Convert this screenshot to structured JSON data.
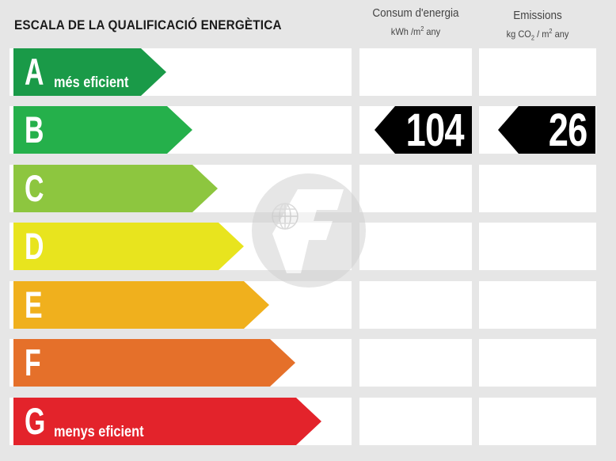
{
  "title": "ESCALA DE LA QUALIFICACIÓ ENERGÈTICA",
  "columns": {
    "consum": {
      "label": "Consum d'energia",
      "unit_base": "kWh /m",
      "unit_exp": "2",
      "unit_end": " any"
    },
    "emissions": {
      "label": "Emissions",
      "unit_pre": "kg CO",
      "unit_sub": "2",
      "unit_mid": " / m",
      "unit_exp": "2",
      "unit_end": " any"
    }
  },
  "scale": [
    {
      "letter": "A",
      "sublabel": "més eficient",
      "color": "#1a9a48"
    },
    {
      "letter": "B",
      "sublabel": "",
      "color": "#25b04b"
    },
    {
      "letter": "C",
      "sublabel": "",
      "color": "#8dc63f"
    },
    {
      "letter": "D",
      "sublabel": "",
      "color": "#e8e41e"
    },
    {
      "letter": "E",
      "sublabel": "",
      "color": "#f0b01d"
    },
    {
      "letter": "F",
      "sublabel": "",
      "color": "#e5702a"
    },
    {
      "letter": "G",
      "sublabel": "menys eficient",
      "color": "#e3232b"
    }
  ],
  "rating": {
    "letter": "B",
    "consum_value": "104",
    "emissions_value": "26"
  },
  "watermark_icon": "globe-f-logo-icon"
}
